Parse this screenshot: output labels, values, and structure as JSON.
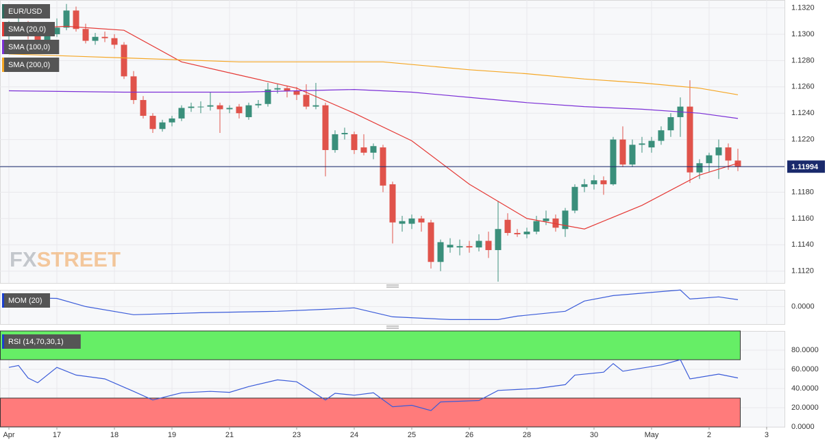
{
  "chart_data": [
    {
      "type": "candlestick",
      "title": "EUR/USD",
      "xlim": [
        -0.93,
        80.86
      ],
      "xticks": [
        {
          "value": 0,
          "label": "Apr"
        },
        {
          "value": 5,
          "label": "17"
        },
        {
          "value": 11,
          "label": "18"
        },
        {
          "value": 17,
          "label": "19"
        },
        {
          "value": 23,
          "label": "21"
        },
        {
          "value": 30,
          "label": "23"
        },
        {
          "value": 36,
          "label": "24"
        },
        {
          "value": 42,
          "label": "25"
        },
        {
          "value": 48,
          "label": "26"
        },
        {
          "value": 54,
          "label": "28"
        },
        {
          "value": 61,
          "label": "30"
        },
        {
          "value": 67,
          "label": "May"
        },
        {
          "value": 73,
          "label": "2"
        },
        {
          "value": 79,
          "label": "3"
        }
      ],
      "ylim": [
        1.1111,
        1.1326
      ],
      "yticks": [
        {
          "value": 1.112,
          "label": "1.1120"
        },
        {
          "value": 1.114,
          "label": "1.1140"
        },
        {
          "value": 1.116,
          "label": "1.1160"
        },
        {
          "value": 1.118,
          "label": "1.1180"
        },
        {
          "value": 1.12,
          "label": "1.1200"
        },
        {
          "value": 1.122,
          "label": "1.1220"
        },
        {
          "value": 1.124,
          "label": "1.1240"
        },
        {
          "value": 1.126,
          "label": "1.1260"
        },
        {
          "value": 1.128,
          "label": "1.1280"
        },
        {
          "value": 1.13,
          "label": "1.1300"
        },
        {
          "value": 1.132,
          "label": "1.1320"
        }
      ],
      "up_color": "#3a8f7b",
      "down_color": "#e0534b",
      "open": [
        1.13,
        1.1305,
        1.1308,
        1.13,
        1.1295,
        1.13,
        1.1305,
        1.1318,
        1.1304,
        1.1295,
        1.1298,
        1.1297,
        1.1292,
        1.1268,
        1.125,
        1.1238,
        1.1228,
        1.1233,
        1.1236,
        1.1244,
        1.1245,
        1.1245,
        1.1246,
        1.1243,
        1.1245,
        1.1237,
        1.1246,
        1.1247,
        1.1258,
        1.1259,
        1.1257,
        1.1254,
        1.1245,
        1.1246,
        1.1212,
        1.1224,
        1.1224,
        1.1214,
        1.121,
        1.1214,
        1.1186,
        1.1156,
        1.1156,
        1.116,
        1.1157,
        1.1127,
        1.1138,
        1.1138,
        1.1139,
        1.1138,
        1.1143,
        1.1136,
        1.1159,
        1.1149,
        1.1148,
        1.115,
        1.1158,
        1.116,
        1.1152,
        1.1166,
        1.1184,
        1.1186,
        1.1189,
        1.1186,
        1.122,
        1.1201,
        1.1216,
        1.1214,
        1.1219,
        1.1227,
        1.1237,
        1.1245,
        1.1195,
        1.1202,
        1.1208,
        1.1214,
        1.1204
      ],
      "high": [
        1.131,
        1.1312,
        1.131,
        1.1303,
        1.1304,
        1.1312,
        1.1323,
        1.1321,
        1.1308,
        1.1301,
        1.1302,
        1.13,
        1.1294,
        1.1272,
        1.1253,
        1.124,
        1.1235,
        1.1238,
        1.1246,
        1.1248,
        1.1249,
        1.1256,
        1.1248,
        1.1246,
        1.1247,
        1.1248,
        1.125,
        1.1263,
        1.1262,
        1.1261,
        1.126,
        1.1262,
        1.1263,
        1.1248,
        1.1227,
        1.1229,
        1.1226,
        1.1224,
        1.1217,
        1.1216,
        1.1188,
        1.1162,
        1.1163,
        1.1162,
        1.1159,
        1.1144,
        1.1145,
        1.1144,
        1.1143,
        1.1148,
        1.115,
        1.1173,
        1.1164,
        1.1152,
        1.1153,
        1.1162,
        1.1166,
        1.1163,
        1.1168,
        1.1186,
        1.119,
        1.1193,
        1.1192,
        1.1222,
        1.123,
        1.122,
        1.1222,
        1.1222,
        1.123,
        1.124,
        1.1252,
        1.1265,
        1.1205,
        1.121,
        1.122,
        1.1217,
        1.1213
      ],
      "low": [
        1.1295,
        1.13,
        1.1296,
        1.129,
        1.1292,
        1.1298,
        1.1303,
        1.1302,
        1.1293,
        1.1292,
        1.1294,
        1.1289,
        1.1266,
        1.1247,
        1.1236,
        1.1225,
        1.1226,
        1.123,
        1.1234,
        1.1241,
        1.124,
        1.1242,
        1.1225,
        1.124,
        1.1236,
        1.1235,
        1.1244,
        1.1245,
        1.1255,
        1.1252,
        1.125,
        1.1243,
        1.1243,
        1.1192,
        1.121,
        1.122,
        1.1209,
        1.1208,
        1.1205,
        1.118,
        1.1141,
        1.115,
        1.1152,
        1.115,
        1.1122,
        1.112,
        1.1134,
        1.1132,
        1.1134,
        1.1135,
        1.113,
        1.1112,
        1.1147,
        1.1146,
        1.1145,
        1.1148,
        1.1155,
        1.115,
        1.1146,
        1.1164,
        1.118,
        1.1182,
        1.1178,
        1.1185,
        1.1199,
        1.1199,
        1.121,
        1.121,
        1.1216,
        1.1222,
        1.1222,
        1.1187,
        1.119,
        1.1195,
        1.119,
        1.1197,
        1.1196
      ],
      "close": [
        1.1305,
        1.1308,
        1.13,
        1.1295,
        1.13,
        1.1305,
        1.1318,
        1.1304,
        1.1295,
        1.1298,
        1.1297,
        1.1292,
        1.1268,
        1.125,
        1.1238,
        1.1228,
        1.1233,
        1.1236,
        1.1244,
        1.1245,
        1.1245,
        1.1246,
        1.1243,
        1.1244,
        1.124,
        1.1246,
        1.1247,
        1.1258,
        1.1259,
        1.1257,
        1.1254,
        1.1245,
        1.1246,
        1.1212,
        1.1224,
        1.1225,
        1.1212,
        1.121,
        1.1215,
        1.1185,
        1.1157,
        1.1158,
        1.116,
        1.1157,
        1.1127,
        1.1142,
        1.114,
        1.1139,
        1.1138,
        1.1143,
        1.1136,
        1.1152,
        1.1149,
        1.1148,
        1.115,
        1.1158,
        1.116,
        1.1153,
        1.1166,
        1.1184,
        1.1186,
        1.1189,
        1.1186,
        1.122,
        1.1201,
        1.1216,
        1.1217,
        1.1219,
        1.1227,
        1.1237,
        1.1245,
        1.1195,
        1.1202,
        1.1208,
        1.1214,
        1.1204,
        1.11994
      ],
      "last_price": 1.11994,
      "last_price_color": "#1a2a6c",
      "series": [
        {
          "name": "SMA (20,0)",
          "color": "#e53935",
          "x": [
            0,
            6,
            12,
            18,
            24,
            30,
            36,
            42,
            48,
            54,
            60,
            66,
            72,
            76
          ],
          "values": [
            1.1304,
            1.1306,
            1.1303,
            1.1279,
            1.1269,
            1.1259,
            1.124,
            1.1219,
            1.1186,
            1.116,
            1.1152,
            1.117,
            1.1193,
            1.1202
          ]
        },
        {
          "name": "SMA (100,0)",
          "color": "#7b2fd6",
          "x": [
            0,
            12,
            24,
            36,
            42,
            48,
            54,
            60,
            66,
            72,
            76
          ],
          "values": [
            1.1257,
            1.1256,
            1.1256,
            1.1258,
            1.1256,
            1.1252,
            1.1248,
            1.1245,
            1.1243,
            1.124,
            1.1236
          ]
        },
        {
          "name": "SMA (200,0)",
          "color": "#f5a623",
          "x": [
            0,
            12,
            24,
            33,
            39,
            48,
            54,
            60,
            66,
            72,
            76
          ],
          "values": [
            1.1285,
            1.1282,
            1.1279,
            1.1279,
            1.1279,
            1.1273,
            1.127,
            1.1266,
            1.1263,
            1.1259,
            1.1254
          ]
        }
      ],
      "logo": {
        "fx": "FX",
        "street": "STREET"
      }
    },
    {
      "type": "line",
      "ylim": [
        -0.0082,
        0.0078
      ],
      "yticks": [
        {
          "value": 0,
          "label": "0.0000"
        }
      ],
      "series": [
        {
          "name": "MOM (20)",
          "color": "#3a5bd9",
          "x": [
            0,
            5,
            8,
            13,
            20,
            28,
            33,
            36,
            40,
            46,
            51,
            53,
            58,
            60,
            63,
            70,
            71,
            74,
            76
          ],
          "values": [
            0.0042,
            0.0038,
            0,
            -0.0038,
            -0.0029,
            -0.0022,
            -0.0013,
            -0.0006,
            -0.0048,
            -0.0061,
            -0.0061,
            -0.0045,
            -0.0022,
            0.0026,
            0.0051,
            0.0077,
            0.0035,
            0.0045,
            0.0032
          ]
        }
      ]
    },
    {
      "type": "line",
      "ylim": [
        0,
        100
      ],
      "yticks": [
        {
          "value": 0,
          "label": "0.0000"
        },
        {
          "value": 20,
          "label": "20.0000"
        },
        {
          "value": 40,
          "label": "40.0000"
        },
        {
          "value": 60,
          "label": "60.0000"
        },
        {
          "value": 80,
          "label": "80.0000"
        }
      ],
      "bands": [
        {
          "range": [
            70,
            100
          ],
          "color": "#66ee66"
        },
        {
          "range": [
            0,
            30
          ],
          "color": "#ff7b7b"
        }
      ],
      "series": [
        {
          "name": "RSI (14,70,30,1)",
          "color": "#3a5bd9",
          "x": [
            0,
            1,
            2,
            3,
            5,
            7,
            10,
            13,
            15,
            18,
            21,
            23,
            25,
            28,
            30,
            33,
            34,
            36,
            38,
            40,
            42,
            44,
            45,
            49,
            51,
            55,
            58,
            59,
            62,
            63,
            64,
            68,
            70,
            71,
            74,
            76
          ],
          "values": [
            62,
            64,
            51,
            46,
            62,
            54,
            50,
            37,
            28,
            35.5,
            37,
            36,
            42,
            49,
            47,
            28,
            35,
            33,
            35.5,
            21,
            22.5,
            17,
            26,
            27.5,
            38,
            40,
            44,
            54,
            57,
            66,
            58,
            64.5,
            70,
            50,
            55,
            51
          ]
        }
      ]
    }
  ]
}
